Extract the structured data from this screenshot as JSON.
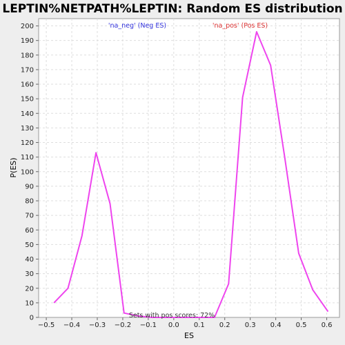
{
  "chart_data": {
    "type": "line",
    "title": "LEPTIN%NETPATH%LEPTIN: Random ES distribution",
    "xlabel": "ES",
    "ylabel": "P(ES)",
    "xlim": [
      -0.53,
      0.65
    ],
    "ylim": [
      0,
      205
    ],
    "xticks": [
      -0.5,
      -0.4,
      -0.3,
      -0.2,
      -0.1,
      0.0,
      0.1,
      0.2,
      0.3,
      0.4,
      0.5,
      0.6
    ],
    "xtick_labels": [
      "−0.5",
      "−0.4",
      "−0.3",
      "−0.2",
      "−0.1",
      "0.0",
      "0.1",
      "0.2",
      "0.3",
      "0.4",
      "0.5",
      "0.6"
    ],
    "yticks": [
      0,
      10,
      20,
      30,
      40,
      50,
      60,
      70,
      80,
      90,
      100,
      110,
      120,
      130,
      140,
      150,
      160,
      170,
      180,
      190,
      200
    ],
    "grid": true,
    "colors": {
      "line": "#ee44ee",
      "neg_label": "#3333dd",
      "pos_label": "#dd3333",
      "plot_bg": "#ffffff",
      "grid": "#dddddd"
    },
    "series": [
      {
        "x": [
          -0.47,
          -0.415,
          -0.36,
          -0.305,
          -0.25,
          -0.195,
          -0.14,
          -0.085,
          -0.03,
          0.025,
          0.08,
          0.135,
          0.16,
          0.215,
          0.27,
          0.325,
          0.38,
          0.435,
          0.49,
          0.545,
          0.605
        ],
        "values": [
          10,
          20,
          56,
          113,
          78,
          3,
          1,
          0,
          0,
          0,
          0,
          0,
          0,
          23,
          151,
          196,
          173,
          110,
          44,
          19,
          4
        ]
      }
    ],
    "annotations": {
      "neg": "'na_neg' (Neg ES)",
      "pos": "'na_pos' (Pos ES)",
      "pos_fraction": "Sets with pos scores: 72%"
    }
  }
}
